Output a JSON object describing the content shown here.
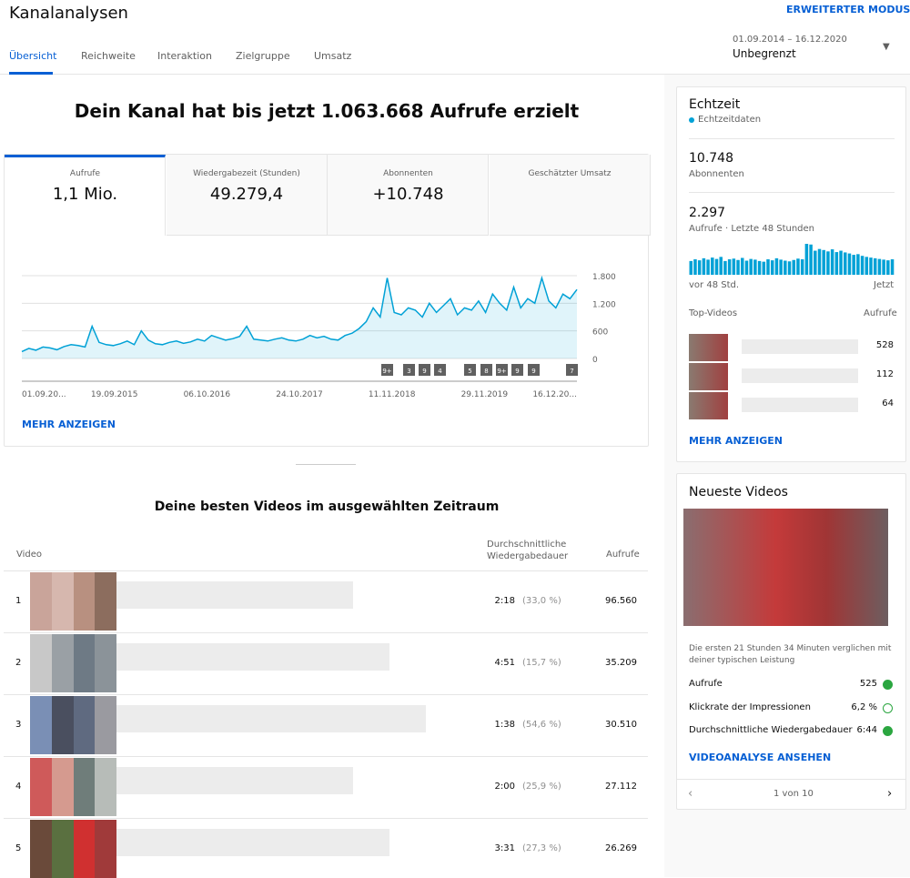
{
  "header": {
    "title": "Kanalanalysen",
    "advanced": "ERWEITERTER MODUS",
    "tabs": [
      "Übersicht",
      "Reichweite",
      "Interaktion",
      "Zielgruppe",
      "Umsatz"
    ],
    "date_range": "01.09.2014 – 16.12.2020",
    "period": "Unbegrenzt"
  },
  "overview": {
    "headline": "Dein Kanal hat bis jetzt 1.063.668 Aufrufe erzielt",
    "metrics": [
      {
        "label": "Aufrufe",
        "value": "1,1 Mio."
      },
      {
        "label": "Wiedergabezeit (Stunden)",
        "value": "49.279,4"
      },
      {
        "label": "Abonnenten",
        "value": "+10.748"
      },
      {
        "label": "Geschätzter Umsatz"
      }
    ],
    "chart": {
      "type": "line",
      "color": "#00a1d6",
      "x_labels": [
        "01.09.20...",
        "19.09.2015",
        "06.10.2016",
        "24.10.2017",
        "11.11.2018",
        "29.11.2019",
        "16.12.20..."
      ],
      "values": [
        150,
        220,
        180,
        250,
        230,
        190,
        260,
        300,
        280,
        250,
        700,
        350,
        300,
        280,
        320,
        380,
        300,
        600,
        400,
        320,
        300,
        350,
        380,
        330,
        360,
        420,
        380,
        500,
        450,
        400,
        430,
        480,
        700,
        420,
        400,
        380,
        420,
        450,
        400,
        380,
        420,
        500,
        450,
        480,
        420,
        400,
        500,
        550,
        650,
        800,
        1100,
        900,
        1750,
        1000,
        950,
        1100,
        1050,
        900,
        1200,
        1000,
        1150,
        1300,
        950,
        1100,
        1050,
        1250,
        1000,
        1400,
        1200,
        1050,
        1550,
        1100,
        1300,
        1200,
        1750,
        1250,
        1100,
        1400,
        1300,
        1500
      ],
      "ylim": [
        0,
        1800
      ],
      "yticks": [
        {
          "value": 1800,
          "label": "1.800"
        },
        {
          "value": 1200,
          "label": "1.200"
        },
        600,
        0
      ],
      "events": [
        "9+",
        "3",
        "9",
        "4",
        "5",
        "8",
        "9+",
        "9",
        "9",
        "7"
      ]
    },
    "more": "MEHR ANZEIGEN"
  },
  "top_videos": {
    "title": "Deine besten Videos im ausgewählten Zeitraum",
    "columns": [
      "Video",
      "Durchschnittliche Wiedergabedauer",
      "Aufrufe"
    ],
    "rows": [
      {
        "rank": "1",
        "duration": "2:18",
        "percent": "(33,0 %)",
        "views": "96.560"
      },
      {
        "rank": "2",
        "duration": "4:51",
        "percent": "(15,7 %)",
        "views": "35.209"
      },
      {
        "rank": "3",
        "duration": "1:38",
        "percent": "(54,6 %)",
        "views": "30.510"
      },
      {
        "rank": "4",
        "duration": "2:00",
        "percent": "(25,9 %)",
        "views": "27.112"
      },
      {
        "rank": "5",
        "duration": "3:31",
        "percent": "(27,3 %)",
        "views": "26.269"
      }
    ]
  },
  "realtime": {
    "title": "Echtzeit",
    "live": "Echtzeitdaten",
    "subs": "10.748",
    "subs_label": "Abonnenten",
    "views": "2.297",
    "views_label": "Aufrufe · Letzte 48 Stunden",
    "chart": {
      "type": "bar",
      "color": "#00a1d6",
      "values": [
        40,
        45,
        42,
        48,
        44,
        50,
        46,
        52,
        40,
        45,
        47,
        43,
        49,
        41,
        46,
        44,
        40,
        38,
        45,
        42,
        48,
        44,
        41,
        39,
        43,
        47,
        45,
        90,
        88,
        70,
        75,
        72,
        68,
        74,
        66,
        70,
        65,
        62,
        58,
        60,
        55,
        52,
        50,
        48,
        46,
        44,
        42,
        45
      ],
      "start": "vor 48 Std.",
      "end": "Jetzt"
    },
    "top_label": "Top-Videos",
    "top_col": "Aufrufe",
    "top": [
      "528",
      "112",
      "64"
    ],
    "more": "MEHR ANZEIGEN"
  },
  "latest": {
    "title": "Neueste Videos",
    "note": "Die ersten 21 Stunden 34 Minuten verglichen mit deiner typischen Leistung",
    "metrics": [
      {
        "label": "Aufrufe",
        "value": "525"
      },
      {
        "label": "Klickrate der Impressionen",
        "value": "6,2 %"
      },
      {
        "label": "Durchschnittliche Wiedergabedauer",
        "value": "6:44"
      }
    ],
    "link": "VIDEOANALYSE ANSEHEN",
    "pager": "1 von 10"
  }
}
